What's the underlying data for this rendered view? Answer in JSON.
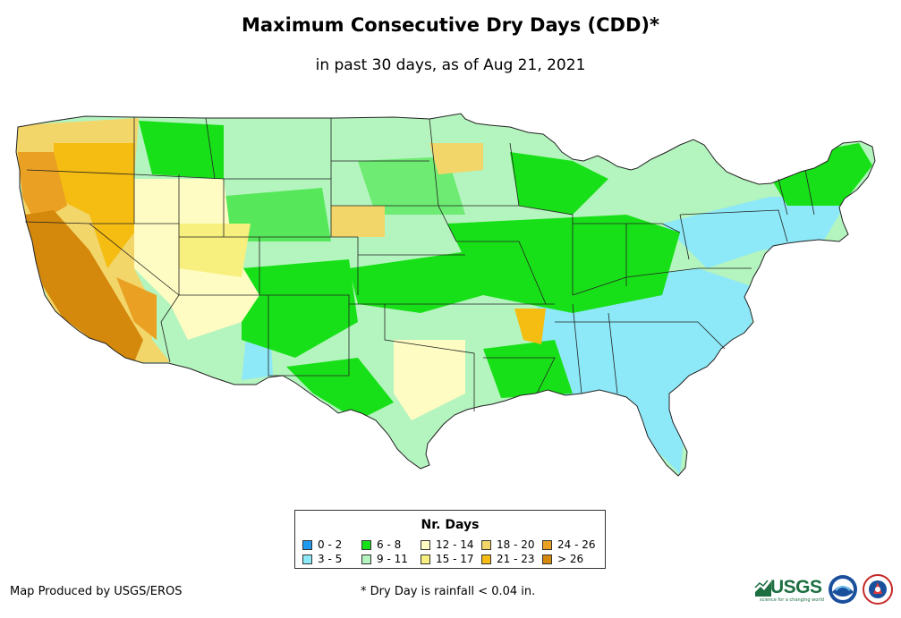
{
  "title": "Maximum Consecutive Dry Days (CDD)*",
  "subtitle": "in past 30 days, as of Aug 21, 2021",
  "legend": {
    "title": "Nr. Days",
    "items": [
      {
        "label": "0 - 2",
        "color": "#1e9bf0"
      },
      {
        "label": "3 - 5",
        "color": "#8de8f8"
      },
      {
        "label": "6 - 8",
        "color": "#18e018"
      },
      {
        "label": "9 - 11",
        "color": "#b4f4be"
      },
      {
        "label": "12 - 14",
        "color": "#fefcc2"
      },
      {
        "label": "15 - 17",
        "color": "#f7f07e"
      },
      {
        "label": "18 - 20",
        "color": "#f3d66a"
      },
      {
        "label": "21 - 23",
        "color": "#f5bc12"
      },
      {
        "label": "24 - 26",
        "color": "#eaa022"
      },
      {
        "label": "> 26",
        "color": "#d4880c"
      }
    ]
  },
  "credit": "Map Produced by USGS/EROS",
  "footnote": "* Dry Day is rainfall < 0.04 in.",
  "logos": {
    "usgs_text": "USGS",
    "usgs_tagline": "science for a changing world"
  }
}
